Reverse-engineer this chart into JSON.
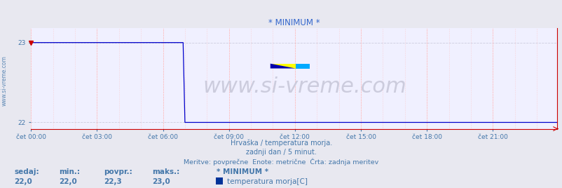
{
  "title": "* MINIMUM *",
  "title_color": "#3366cc",
  "title_fontsize": 8.5,
  "bg_color": "#e8e8f0",
  "plot_bg_color": "#f0f0ff",
  "grid_color_h": "#ccccdd",
  "grid_color_v": "#ffbbbb",
  "line_color": "#0000cc",
  "axis_color_bottom": "#cc0000",
  "axis_color_right": "#cc0000",
  "text_color": "#4477aa",
  "ylabel_left": "www.si-vreme.com",
  "ymin": 22.0,
  "ymax": 23.0,
  "yticks": [
    22,
    23
  ],
  "xmin": 0,
  "xmax": 287,
  "xtick_positions": [
    0,
    36,
    72,
    108,
    144,
    180,
    216,
    252
  ],
  "xtick_labels": [
    "čet 00:00",
    "čet 03:00",
    "čet 06:00",
    "čet 09:00",
    "čet 12:00",
    "čet 15:00",
    "čet 18:00",
    "čet 21:00"
  ],
  "drop_index": 84,
  "high_value": 23.0,
  "low_value": 22.0,
  "n_points": 288,
  "subtitle1": "Hrvaška / temperatura morja.",
  "subtitle2": "zadnji dan / 5 minut.",
  "subtitle3": "Meritve: povprečne  Enote: metrične  Črta: zadnja meritev",
  "legend_title": "* MINIMUM *",
  "legend_label": "temperatura morja[C]",
  "legend_color": "#003399",
  "stat_labels": [
    "sedaj:",
    "min.:",
    "povpr.:",
    "maks.:"
  ],
  "stat_values": [
    "22,0",
    "22,0",
    "22,3",
    "23,0"
  ],
  "watermark": "www.si-vreme.com",
  "watermark_color": "#ccccdd",
  "watermark_fontsize": 22
}
